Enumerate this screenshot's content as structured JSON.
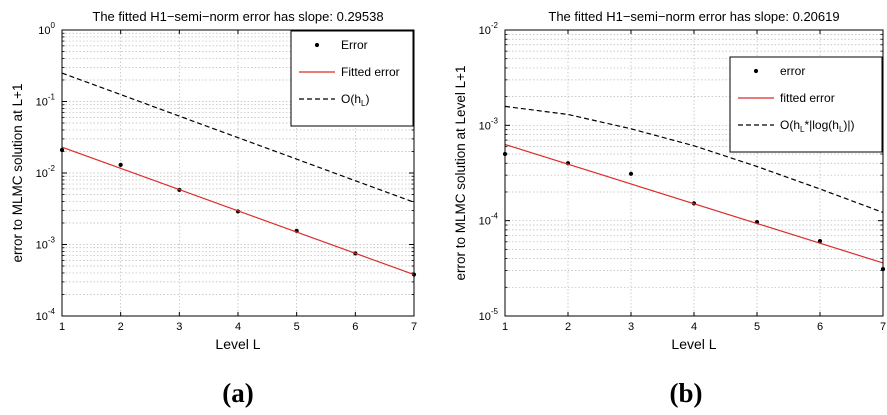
{
  "panel_labels": [
    "(a)",
    "(b)"
  ],
  "chart_data": [
    {
      "type": "scatter",
      "title": "The fitted H1−semi−norm error has slope: 0.29538",
      "xlabel": "Level L",
      "ylabel": "error to MLMC solution at L+1",
      "xlim": [
        1,
        7
      ],
      "ylim": [
        0.0001,
        1
      ],
      "y_scale": "log",
      "grid": true,
      "legend_position": "top-right",
      "x_ticks": [
        1,
        2,
        3,
        4,
        5,
        6,
        7
      ],
      "y_ticks": [
        0.0001,
        0.001,
        0.01,
        0.1,
        1
      ],
      "y_tick_exponents": [
        "-4",
        "-3",
        "-2",
        "-1",
        "0"
      ],
      "y_tick_base": "10",
      "series": [
        {
          "name": "Error",
          "kind": "points",
          "color": "#000000",
          "x": [
            1,
            2,
            3,
            4,
            5,
            6,
            7
          ],
          "y": [
            0.021,
            0.013,
            0.0058,
            0.0029,
            0.00155,
            0.00075,
            0.00038
          ]
        },
        {
          "name": "Fitted error",
          "kind": "line",
          "color": "#dd2b2b",
          "x": [
            1,
            7
          ],
          "y": [
            0.023,
            0.00038
          ]
        },
        {
          "name": "",
          "legend_parts": [
            "O(h",
            "L",
            ")"
          ],
          "kind": "dashed",
          "color": "#000000",
          "x": [
            1,
            7
          ],
          "y": [
            0.25,
            0.0039
          ]
        }
      ]
    },
    {
      "type": "scatter",
      "title": "The fitted H1−semi−norm error has slope: 0.20619",
      "xlabel": "Level L",
      "ylabel": "error to MLMC solution at Level L+1",
      "xlim": [
        1,
        7
      ],
      "ylim": [
        1e-05,
        0.01
      ],
      "y_scale": "log",
      "grid": true,
      "legend_position": "top-right",
      "x_ticks": [
        1,
        2,
        3,
        4,
        5,
        6,
        7
      ],
      "y_ticks": [
        1e-05,
        0.0001,
        0.001,
        0.01
      ],
      "y_tick_exponents": [
        "-5",
        "-4",
        "-3",
        "-2"
      ],
      "y_tick_base": "10",
      "series": [
        {
          "name": "error",
          "kind": "points",
          "color": "#000000",
          "x": [
            1,
            2,
            3,
            4,
            5,
            6,
            7
          ],
          "y": [
            0.0005,
            0.0004,
            0.00031,
            0.000152,
            9.65e-05,
            6.1e-05,
            3.1e-05
          ]
        },
        {
          "name": "fitted error",
          "kind": "line",
          "color": "#dd2b2b",
          "x": [
            1,
            7
          ],
          "y": [
            0.00063,
            3.6e-05
          ]
        },
        {
          "name": "",
          "legend_parts": [
            "O(h",
            "L",
            "*|log(h",
            "L",
            ")|)"
          ],
          "kind": "dashed",
          "color": "#000000",
          "x": [
            1,
            2,
            3,
            4,
            5,
            6,
            7
          ],
          "y": [
            0.00158,
            0.0013,
            0.00092,
            0.00061,
            0.00037,
            0.000215,
            0.000122
          ]
        }
      ]
    }
  ]
}
